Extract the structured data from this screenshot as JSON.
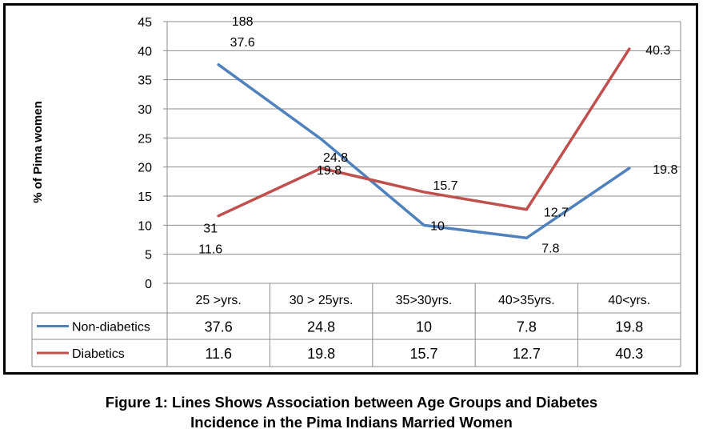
{
  "chart_data": {
    "type": "line",
    "title": "",
    "xlabel": "",
    "ylabel": "% of Pima women",
    "ylim": [
      0,
      45
    ],
    "yticks": [
      "0",
      "5",
      "10",
      "15",
      "20",
      "25",
      "30",
      "35",
      "40",
      "45"
    ],
    "grid": true,
    "legend": "data-table-below",
    "categories": [
      "25 >yrs.",
      "30 > 25yrs.",
      "35>30yrs.",
      "40>35yrs.",
      "40<yrs."
    ],
    "series": [
      {
        "name": "Non-diabetics",
        "color": "#4F81BD",
        "values": [
          37.6,
          24.8,
          10,
          7.8,
          19.8
        ],
        "table_values": [
          "37.6",
          "24.8",
          "10",
          "7.8",
          "19.8"
        ],
        "labels": [
          "188\n37.6",
          "24.8",
          "10",
          "7.8",
          "19.8"
        ]
      },
      {
        "name": "Diabetics",
        "color": "#C0504D",
        "values": [
          11.6,
          19.8,
          15.7,
          12.7,
          40.3
        ],
        "table_values": [
          "11.6",
          "19.8",
          "15.7",
          "12.7",
          "40.3"
        ],
        "labels": [
          "31\n11.6",
          "19.8",
          "15.7",
          "12.7",
          "40.3"
        ]
      }
    ]
  },
  "caption": {
    "line1": "Figure 1: Lines Shows Association between Age Groups and Diabetes",
    "line2": "Incidence in the Pima Indians Married Women"
  }
}
